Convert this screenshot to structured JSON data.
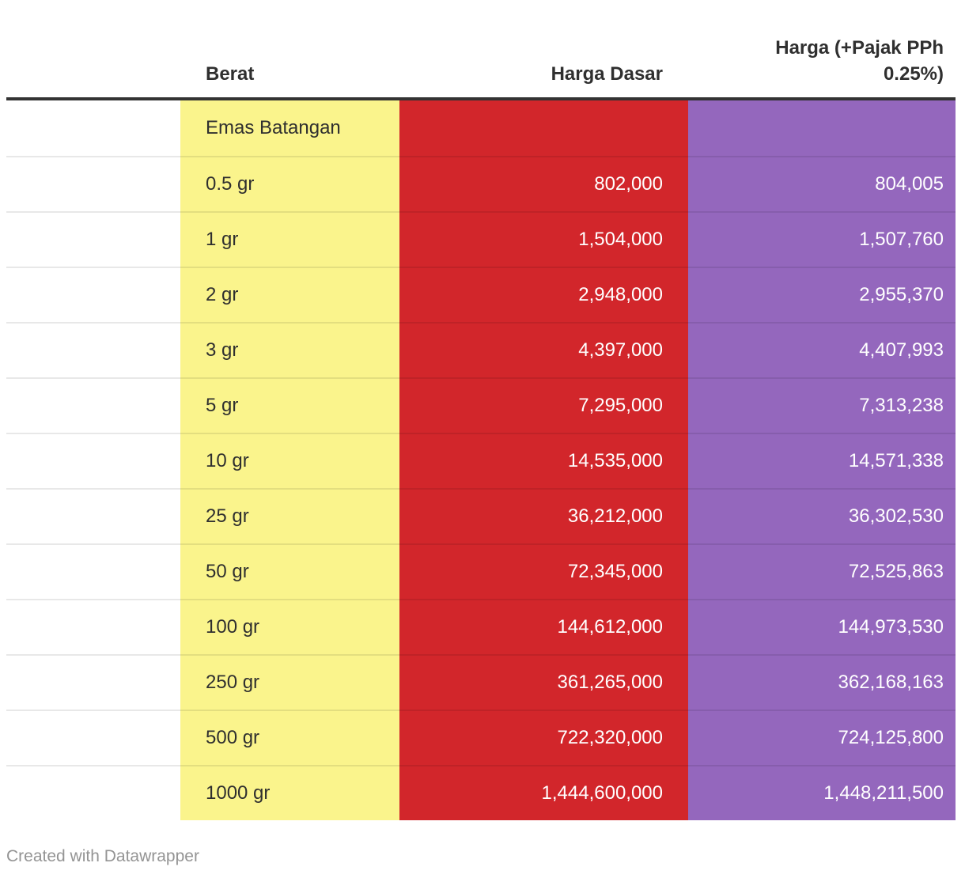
{
  "header": {
    "col_berat": "Berat",
    "col_harga_dasar": "Harga Dasar",
    "col_harga_pajak": "Harga (+Pajak PPh 0.25%)"
  },
  "rows": [
    {
      "berat": "Emas Batangan",
      "harga_dasar": "",
      "harga_pajak": ""
    },
    {
      "berat": "0.5 gr",
      "harga_dasar": "802,000",
      "harga_pajak": "804,005"
    },
    {
      "berat": "1 gr",
      "harga_dasar": "1,504,000",
      "harga_pajak": "1,507,760"
    },
    {
      "berat": "2 gr",
      "harga_dasar": "2,948,000",
      "harga_pajak": "2,955,370"
    },
    {
      "berat": "3 gr",
      "harga_dasar": "4,397,000",
      "harga_pajak": "4,407,993"
    },
    {
      "berat": "5 gr",
      "harga_dasar": "7,295,000",
      "harga_pajak": "7,313,238"
    },
    {
      "berat": "10 gr",
      "harga_dasar": "14,535,000",
      "harga_pajak": "14,571,338"
    },
    {
      "berat": "25 gr",
      "harga_dasar": "36,212,000",
      "harga_pajak": "36,302,530"
    },
    {
      "berat": "50 gr",
      "harga_dasar": "72,345,000",
      "harga_pajak": "72,525,863"
    },
    {
      "berat": "100 gr",
      "harga_dasar": "144,612,000",
      "harga_pajak": "144,973,530"
    },
    {
      "berat": "250 gr",
      "harga_dasar": "361,265,000",
      "harga_pajak": "362,168,163"
    },
    {
      "berat": "500 gr",
      "harga_dasar": "722,320,000",
      "harga_pajak": "724,125,800"
    },
    {
      "berat": "1000 gr",
      "harga_dasar": "1,444,600,000",
      "harga_pajak": "1,448,211,500"
    }
  ],
  "footer": {
    "attribution": "Created with Datawrapper"
  },
  "colors": {
    "berat_column_bg": "#faf48c",
    "harga_dasar_column_bg": "#d2262b",
    "harga_pajak_column_bg": "#9467bd",
    "header_rule": "#333333",
    "row_label_text": "#2f2f2f",
    "value_text": "#ffffff",
    "attribution_text": "#949494"
  },
  "chart_data": {
    "type": "table",
    "title": "",
    "columns": [
      "Berat",
      "Harga Dasar",
      "Harga (+Pajak PPh 0.25%)"
    ],
    "group_row": "Emas Batangan",
    "rows": [
      {
        "berat": "0.5 gr",
        "harga_dasar": 802000,
        "harga_pajak": 804005
      },
      {
        "berat": "1 gr",
        "harga_dasar": 1504000,
        "harga_pajak": 1507760
      },
      {
        "berat": "2 gr",
        "harga_dasar": 2948000,
        "harga_pajak": 2955370
      },
      {
        "berat": "3 gr",
        "harga_dasar": 4397000,
        "harga_pajak": 4407993
      },
      {
        "berat": "5 gr",
        "harga_dasar": 7295000,
        "harga_pajak": 7313238
      },
      {
        "berat": "10 gr",
        "harga_dasar": 14535000,
        "harga_pajak": 14571338
      },
      {
        "berat": "25 gr",
        "harga_dasar": 36212000,
        "harga_pajak": 36302530
      },
      {
        "berat": "50 gr",
        "harga_dasar": 72345000,
        "harga_pajak": 72525863
      },
      {
        "berat": "100 gr",
        "harga_dasar": 144612000,
        "harga_pajak": 144973530
      },
      {
        "berat": "250 gr",
        "harga_dasar": 361265000,
        "harga_pajak": 362168163
      },
      {
        "berat": "500 gr",
        "harga_dasar": 722320000,
        "harga_pajak": 724125800
      },
      {
        "berat": "1000 gr",
        "harga_dasar": 1444600000,
        "harga_pajak": 1448211500
      }
    ],
    "layout_hints": {
      "column_fills": [
        "#faf48c",
        "#d2262b",
        "#9467bd"
      ],
      "column_alignment": [
        "left",
        "right",
        "right"
      ],
      "grid": "horizontal separators only"
    }
  }
}
